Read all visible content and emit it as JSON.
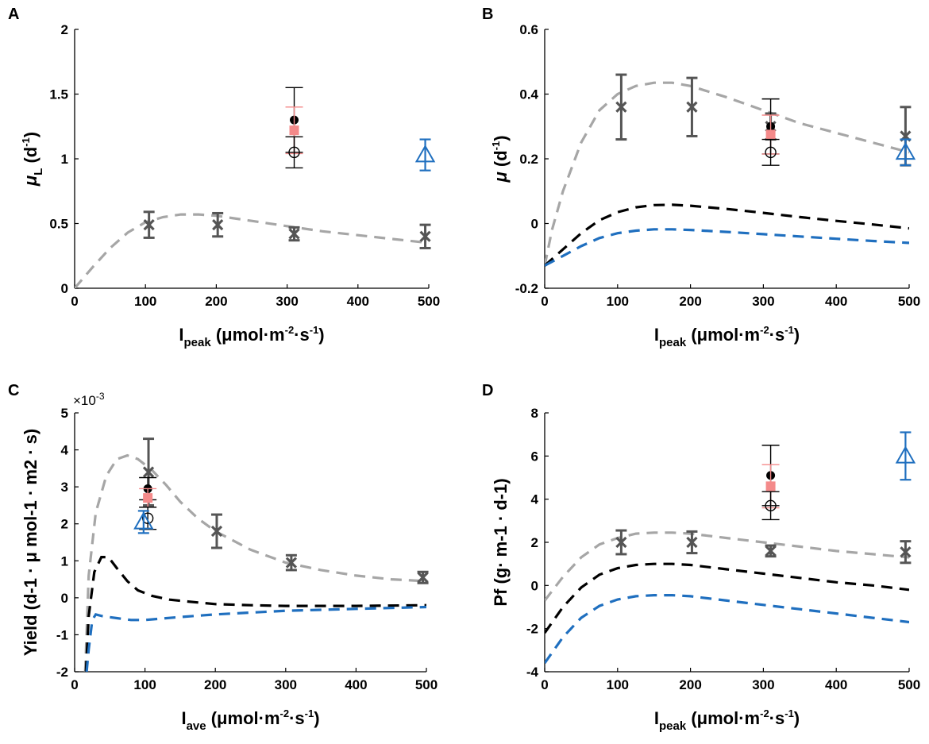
{
  "colors": {
    "gray_model": "#a6a6a6",
    "black_model": "#000000",
    "blue_model": "#1f6fbf",
    "pink": "#f48a8a",
    "exp": "#555555",
    "blue_point": "#1f6fbf"
  },
  "chart_data": [
    {
      "id": "A",
      "type": "scatter",
      "panel_letter": "A",
      "xlabel": {
        "main": "I",
        "sub": "peak",
        "unit": "(μmol·m",
        "sup1": "-2",
        "mid": "·s",
        "sup2": "-1",
        "end": ")"
      },
      "ylabel": {
        "main": "μ",
        "sub": "L",
        "unit": " (d",
        "sup": "-1",
        "end": ")"
      },
      "xlim": [
        0,
        500
      ],
      "ylim": [
        0,
        2
      ],
      "xticks": [
        0,
        100,
        200,
        300,
        400,
        500
      ],
      "yticks": [
        0,
        0.5,
        1,
        1.5,
        2
      ],
      "ytick_labels": [
        "0",
        "0.5",
        "1",
        "1.5",
        "2"
      ],
      "series": [
        {
          "name": "gray-model",
          "style": "dash",
          "color": "gray_model",
          "x": [
            0,
            25,
            50,
            75,
            100,
            125,
            150,
            175,
            200,
            250,
            300,
            350,
            400,
            450,
            500
          ],
          "y": [
            0,
            0.16,
            0.31,
            0.43,
            0.51,
            0.55,
            0.57,
            0.57,
            0.56,
            0.52,
            0.48,
            0.44,
            0.41,
            0.38,
            0.35
          ]
        },
        {
          "name": "measured-x",
          "marker": "x",
          "color": "exp",
          "x": [
            105,
            202,
            310,
            495
          ],
          "y": [
            0.49,
            0.49,
            0.42,
            0.4
          ],
          "err": [
            0.1,
            0.09,
            0.05,
            0.09
          ]
        },
        {
          "name": "black-filled-circle",
          "marker": "filled-circle",
          "color": "black_model",
          "x": [
            310
          ],
          "y": [
            1.3
          ],
          "err": [
            0.25
          ]
        },
        {
          "name": "pink-square",
          "marker": "square",
          "color": "pink",
          "x": [
            310
          ],
          "y": [
            1.22
          ],
          "err": [
            0.18
          ]
        },
        {
          "name": "open-circle",
          "marker": "open-circle",
          "color": "black_model",
          "x": [
            310
          ],
          "y": [
            1.05
          ],
          "err": [
            0.12
          ]
        },
        {
          "name": "blue-triangle",
          "marker": "triangle",
          "color": "blue_point",
          "x": [
            495
          ],
          "y": [
            1.03
          ],
          "err": [
            0.12
          ]
        }
      ]
    },
    {
      "id": "B",
      "type": "scatter",
      "panel_letter": "B",
      "xlabel": {
        "main": "I",
        "sub": "peak",
        "unit": "(μmol·m",
        "sup1": "-2",
        "mid": "·s",
        "sup2": "-1",
        "end": ")"
      },
      "ylabel": {
        "main": "μ",
        "sub": "",
        "unit": " (d",
        "sup": "-1",
        "end": ")"
      },
      "xlim": [
        0,
        500
      ],
      "ylim": [
        -0.2,
        0.6
      ],
      "xticks": [
        0,
        100,
        200,
        300,
        400,
        500
      ],
      "yticks": [
        -0.2,
        0,
        0.2,
        0.4,
        0.6
      ],
      "ytick_labels": [
        "-0.2",
        "0",
        "0.2",
        "0.4",
        "0.6"
      ],
      "series": [
        {
          "name": "gray-model",
          "style": "dash",
          "color": "gray_model",
          "x": [
            0,
            10,
            25,
            50,
            75,
            100,
            125,
            150,
            175,
            200,
            250,
            300,
            350,
            400,
            450,
            500
          ],
          "y": [
            -0.13,
            -0.02,
            0.1,
            0.25,
            0.35,
            0.4,
            0.425,
            0.435,
            0.435,
            0.425,
            0.39,
            0.35,
            0.31,
            0.28,
            0.25,
            0.22
          ]
        },
        {
          "name": "black-model",
          "style": "dash",
          "color": "black_model",
          "x": [
            0,
            25,
            50,
            75,
            100,
            125,
            150,
            175,
            200,
            250,
            300,
            350,
            400,
            450,
            500
          ],
          "y": [
            -0.13,
            -0.08,
            -0.03,
            0.01,
            0.035,
            0.05,
            0.057,
            0.058,
            0.055,
            0.045,
            0.033,
            0.02,
            0.008,
            -0.003,
            -0.015
          ]
        },
        {
          "name": "blue-model",
          "style": "dash",
          "color": "blue_model",
          "x": [
            0,
            25,
            50,
            75,
            100,
            125,
            150,
            175,
            200,
            250,
            300,
            350,
            400,
            450,
            500
          ],
          "y": [
            -0.13,
            -0.1,
            -0.07,
            -0.045,
            -0.03,
            -0.022,
            -0.018,
            -0.018,
            -0.02,
            -0.026,
            -0.033,
            -0.04,
            -0.047,
            -0.054,
            -0.06
          ]
        },
        {
          "name": "measured-x",
          "marker": "x",
          "color": "exp",
          "x": [
            105,
            202,
            310,
            495
          ],
          "y": [
            0.36,
            0.36,
            0.3,
            0.27
          ],
          "err": [
            0.1,
            0.09,
            0.04,
            0.09
          ]
        },
        {
          "name": "black-filled-circle",
          "marker": "filled-circle",
          "color": "black_model",
          "x": [
            310
          ],
          "y": [
            0.3
          ],
          "err": [
            0.085
          ]
        },
        {
          "name": "pink-square",
          "marker": "square",
          "color": "pink",
          "x": [
            310
          ],
          "y": [
            0.275
          ],
          "err": [
            0.06
          ]
        },
        {
          "name": "open-circle",
          "marker": "open-circle",
          "color": "black_model",
          "x": [
            310
          ],
          "y": [
            0.22
          ],
          "err": [
            0.04
          ]
        },
        {
          "name": "blue-triangle",
          "marker": "triangle",
          "color": "blue_point",
          "x": [
            495
          ],
          "y": [
            0.22
          ],
          "err": [
            0.04
          ]
        }
      ]
    },
    {
      "id": "C",
      "type": "scatter",
      "panel_letter": "C",
      "exponent": {
        "base": "×10",
        "power": "-3"
      },
      "xlabel": {
        "main": "I",
        "sub": "ave",
        "unit": "(μmol·m",
        "sup1": "-2",
        "mid": "·s",
        "sup2": "-1",
        "end": ")"
      },
      "ylabel_text": "Yield (d-1 · μ mol-1 · m2 · s)",
      "xlim": [
        0,
        500
      ],
      "ylim": [
        -2,
        5
      ],
      "xticks": [
        0,
        100,
        200,
        300,
        400,
        500
      ],
      "yticks": [
        -2,
        -1,
        0,
        1,
        2,
        3,
        4,
        5
      ],
      "ytick_labels": [
        "-2",
        "-1",
        "0",
        "1",
        "2",
        "3",
        "4",
        "5"
      ],
      "series": [
        {
          "name": "gray-model",
          "style": "dash",
          "color": "gray_model",
          "x": [
            15,
            20,
            30,
            45,
            60,
            75,
            90,
            110,
            130,
            150,
            175,
            200,
            250,
            300,
            350,
            400,
            450,
            500
          ],
          "y": [
            -2,
            0.6,
            2.3,
            3.3,
            3.75,
            3.85,
            3.75,
            3.45,
            3.05,
            2.6,
            2.15,
            1.8,
            1.3,
            0.95,
            0.75,
            0.6,
            0.5,
            0.45
          ]
        },
        {
          "name": "black-model",
          "style": "dash",
          "color": "black_model",
          "x": [
            16,
            20,
            28,
            38,
            48,
            60,
            75,
            90,
            110,
            135,
            160,
            200,
            250,
            300,
            400,
            500
          ],
          "y": [
            -2,
            -0.5,
            0.7,
            1.1,
            1.1,
            0.8,
            0.45,
            0.2,
            0.05,
            -0.05,
            -0.1,
            -0.17,
            -0.2,
            -0.22,
            -0.22,
            -0.2
          ]
        },
        {
          "name": "blue-model",
          "style": "dash",
          "color": "blue_model",
          "x": [
            17,
            20,
            25,
            30,
            40,
            60,
            80,
            100,
            150,
            200,
            250,
            300,
            400,
            500
          ],
          "y": [
            -2,
            -1.4,
            -0.6,
            -0.45,
            -0.5,
            -0.55,
            -0.6,
            -0.6,
            -0.52,
            -0.45,
            -0.4,
            -0.35,
            -0.3,
            -0.25
          ]
        },
        {
          "name": "measured-x",
          "marker": "x",
          "color": "exp",
          "x": [
            105,
            202,
            308,
            495
          ],
          "y": [
            3.4,
            1.8,
            0.95,
            0.55
          ],
          "err": [
            0.9,
            0.45,
            0.2,
            0.15
          ]
        },
        {
          "name": "black-filled-circle",
          "marker": "filled-circle",
          "color": "black_model",
          "x": [
            104
          ],
          "y": [
            2.95
          ],
          "err": [
            0.3
          ]
        },
        {
          "name": "pink-square",
          "marker": "square",
          "color": "pink",
          "x": [
            104
          ],
          "y": [
            2.7
          ],
          "err": [
            0.25
          ]
        },
        {
          "name": "open-circle",
          "marker": "open-circle",
          "color": "black_model",
          "x": [
            104
          ],
          "y": [
            2.15
          ],
          "err": [
            0.3
          ]
        },
        {
          "name": "blue-triangle",
          "marker": "triangle",
          "color": "blue_point",
          "x": [
            98
          ],
          "y": [
            2.05
          ],
          "err": [
            0.3
          ]
        }
      ]
    },
    {
      "id": "D",
      "type": "scatter",
      "panel_letter": "D",
      "xlabel": {
        "main": "I",
        "sub": "peak",
        "unit": "(μmol·m",
        "sup1": "-2",
        "mid": "·s",
        "sup2": "-1",
        "end": ")"
      },
      "ylabel_text": "Pf (g· m-1 · d-1)",
      "xlim": [
        0,
        500
      ],
      "ylim": [
        -4,
        8
      ],
      "xticks": [
        0,
        100,
        200,
        300,
        400,
        500
      ],
      "yticks": [
        -4,
        -2,
        0,
        2,
        4,
        6,
        8
      ],
      "ytick_labels": [
        "-4",
        "-2",
        "0",
        "2",
        "4",
        "6",
        "8"
      ],
      "series": [
        {
          "name": "gray-model",
          "style": "dash",
          "color": "gray_model",
          "x": [
            0,
            25,
            50,
            75,
            100,
            125,
            150,
            175,
            200,
            250,
            300,
            350,
            400,
            450,
            500
          ],
          "y": [
            -0.7,
            0.4,
            1.3,
            1.9,
            2.2,
            2.4,
            2.45,
            2.45,
            2.4,
            2.2,
            2.0,
            1.8,
            1.6,
            1.45,
            1.3
          ]
        },
        {
          "name": "black-model",
          "style": "dash",
          "color": "black_model",
          "x": [
            0,
            25,
            50,
            75,
            100,
            125,
            150,
            175,
            200,
            250,
            300,
            350,
            400,
            450,
            500
          ],
          "y": [
            -2.2,
            -1.0,
            -0.1,
            0.5,
            0.8,
            0.95,
            1.0,
            1.0,
            0.95,
            0.75,
            0.55,
            0.35,
            0.15,
            0.0,
            -0.2
          ]
        },
        {
          "name": "blue-model",
          "style": "dash",
          "color": "blue_model",
          "x": [
            0,
            25,
            50,
            75,
            100,
            125,
            150,
            175,
            200,
            250,
            300,
            350,
            400,
            450,
            500
          ],
          "y": [
            -3.6,
            -2.4,
            -1.5,
            -0.95,
            -0.65,
            -0.5,
            -0.45,
            -0.45,
            -0.5,
            -0.7,
            -0.9,
            -1.1,
            -1.3,
            -1.5,
            -1.7
          ]
        },
        {
          "name": "measured-x",
          "marker": "x",
          "color": "exp",
          "x": [
            105,
            202,
            310,
            495
          ],
          "y": [
            2.0,
            2.0,
            1.6,
            1.55
          ],
          "err": [
            0.55,
            0.5,
            0.25,
            0.5
          ]
        },
        {
          "name": "black-filled-circle",
          "marker": "filled-circle",
          "color": "black_model",
          "x": [
            310
          ],
          "y": [
            5.1
          ],
          "err": [
            1.4
          ]
        },
        {
          "name": "pink-square",
          "marker": "square",
          "color": "pink",
          "x": [
            310
          ],
          "y": [
            4.6
          ],
          "err": [
            1.0
          ]
        },
        {
          "name": "open-circle",
          "marker": "open-circle",
          "color": "black_model",
          "x": [
            310
          ],
          "y": [
            3.7
          ],
          "err": [
            0.65
          ]
        },
        {
          "name": "blue-triangle",
          "marker": "triangle",
          "color": "blue_point",
          "x": [
            495
          ],
          "y": [
            6.0
          ],
          "err": [
            1.1
          ]
        }
      ]
    }
  ]
}
